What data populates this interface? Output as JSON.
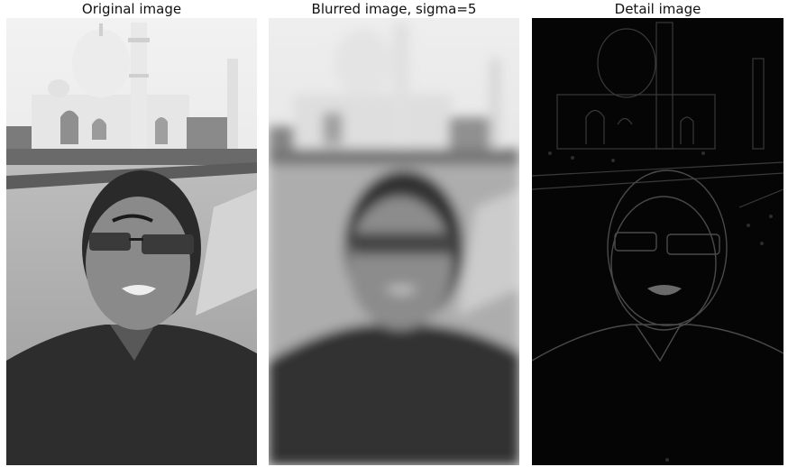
{
  "panels": [
    {
      "title": "Original image",
      "style": "original"
    },
    {
      "title": "Blurred image, sigma=5",
      "style": "blurred"
    },
    {
      "title": "Detail image",
      "style": "detail"
    }
  ]
}
